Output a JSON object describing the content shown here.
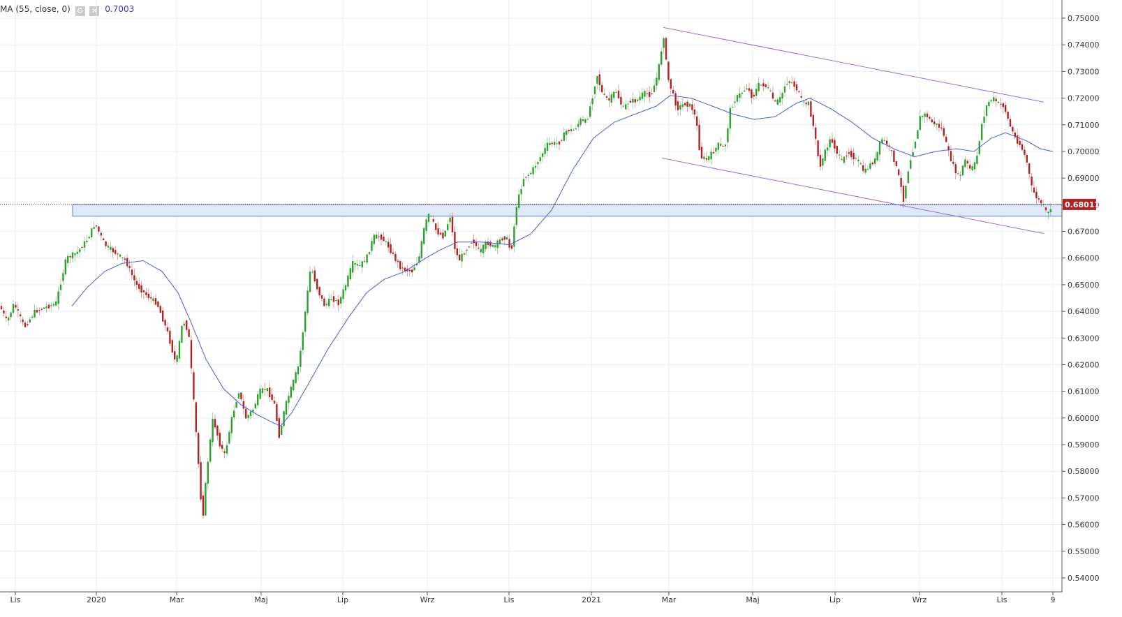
{
  "indicator": {
    "label": "MA (55, close, 0)",
    "value": "0.7003",
    "settings_icon": "gear-icon",
    "close_icon": "close-icon"
  },
  "price_tag": "0.68011",
  "colors": {
    "up": "#2ea02e",
    "down": "#b22222",
    "ma": "#4a5bd6",
    "channel": "#9b6ccf",
    "zone_fill": "#dfe9f7",
    "zone_border": "#5a7fc6",
    "price_line": "#8b1a1a",
    "grid": "#e9eef3"
  },
  "chart_data": {
    "type": "candlestick",
    "y_axis_labels": [
      "0.75000",
      "0.74000",
      "0.73000",
      "0.72000",
      "0.71000",
      "0.70000",
      "0.69000",
      "0.68000",
      "0.67000",
      "0.66000",
      "0.65000",
      "0.64000",
      "0.63000",
      "0.62000",
      "0.61000",
      "0.60000",
      "0.59000",
      "0.58000",
      "0.57000",
      "0.56000",
      "0.55000",
      "0.54000"
    ],
    "x_axis_labels": [
      "Lis",
      "2020",
      "Mar",
      "Maj",
      "Lip",
      "Wrz",
      "Lis",
      "2021",
      "Mar",
      "Maj",
      "Lip",
      "Wrz",
      "Lis",
      "9"
    ],
    "ylim": [
      0.537,
      0.752
    ],
    "last_price": 0.68011,
    "support_zone": [
      0.6757,
      0.68
    ],
    "price_path": [
      [
        0,
        0.642
      ],
      [
        10,
        0.636
      ],
      [
        20,
        0.643
      ],
      [
        35,
        0.634
      ],
      [
        50,
        0.64
      ],
      [
        70,
        0.642
      ],
      [
        80,
        0.643
      ],
      [
        95,
        0.66
      ],
      [
        110,
        0.662
      ],
      [
        125,
        0.667
      ],
      [
        136,
        0.673
      ],
      [
        150,
        0.665
      ],
      [
        165,
        0.662
      ],
      [
        180,
        0.659
      ],
      [
        195,
        0.65
      ],
      [
        210,
        0.646
      ],
      [
        225,
        0.643
      ],
      [
        240,
        0.632
      ],
      [
        252,
        0.62
      ],
      [
        262,
        0.637
      ],
      [
        270,
        0.632
      ],
      [
        278,
        0.604
      ],
      [
        285,
        0.58
      ],
      [
        290,
        0.561
      ],
      [
        296,
        0.58
      ],
      [
        305,
        0.6
      ],
      [
        315,
        0.59
      ],
      [
        322,
        0.586
      ],
      [
        332,
        0.6
      ],
      [
        342,
        0.61
      ],
      [
        352,
        0.6
      ],
      [
        362,
        0.603
      ],
      [
        372,
        0.61
      ],
      [
        382,
        0.611
      ],
      [
        393,
        0.605
      ],
      [
        400,
        0.593
      ],
      [
        408,
        0.604
      ],
      [
        418,
        0.612
      ],
      [
        428,
        0.62
      ],
      [
        435,
        0.635
      ],
      [
        445,
        0.657
      ],
      [
        455,
        0.648
      ],
      [
        465,
        0.642
      ],
      [
        475,
        0.645
      ],
      [
        485,
        0.643
      ],
      [
        495,
        0.65
      ],
      [
        505,
        0.658
      ],
      [
        515,
        0.657
      ],
      [
        525,
        0.66
      ],
      [
        535,
        0.668
      ],
      [
        545,
        0.668
      ],
      [
        555,
        0.665
      ],
      [
        565,
        0.66
      ],
      [
        575,
        0.656
      ],
      [
        590,
        0.655
      ],
      [
        600,
        0.66
      ],
      [
        608,
        0.672
      ],
      [
        615,
        0.677
      ],
      [
        625,
        0.67
      ],
      [
        635,
        0.668
      ],
      [
        645,
        0.676
      ],
      [
        650,
        0.665
      ],
      [
        657,
        0.659
      ],
      [
        667,
        0.663
      ],
      [
        677,
        0.667
      ],
      [
        687,
        0.662
      ],
      [
        697,
        0.666
      ],
      [
        707,
        0.664
      ],
      [
        717,
        0.667
      ],
      [
        725,
        0.668
      ],
      [
        732,
        0.662
      ],
      [
        740,
        0.68
      ],
      [
        750,
        0.69
      ],
      [
        760,
        0.692
      ],
      [
        772,
        0.697
      ],
      [
        785,
        0.703
      ],
      [
        800,
        0.703
      ],
      [
        812,
        0.708
      ],
      [
        822,
        0.708
      ],
      [
        832,
        0.712
      ],
      [
        840,
        0.711
      ],
      [
        848,
        0.72
      ],
      [
        855,
        0.729
      ],
      [
        862,
        0.722
      ],
      [
        872,
        0.719
      ],
      [
        882,
        0.723
      ],
      [
        892,
        0.716
      ],
      [
        902,
        0.719
      ],
      [
        912,
        0.719
      ],
      [
        922,
        0.722
      ],
      [
        932,
        0.721
      ],
      [
        940,
        0.727
      ],
      [
        946,
        0.735
      ],
      [
        950,
        0.745
      ],
      [
        956,
        0.728
      ],
      [
        963,
        0.722
      ],
      [
        970,
        0.716
      ],
      [
        980,
        0.718
      ],
      [
        990,
        0.717
      ],
      [
        997,
        0.712
      ],
      [
        1003,
        0.698
      ],
      [
        1012,
        0.697
      ],
      [
        1022,
        0.7
      ],
      [
        1030,
        0.703
      ],
      [
        1038,
        0.701
      ],
      [
        1046,
        0.716
      ],
      [
        1054,
        0.72
      ],
      [
        1062,
        0.722
      ],
      [
        1070,
        0.724
      ],
      [
        1078,
        0.72
      ],
      [
        1086,
        0.725
      ],
      [
        1094,
        0.725
      ],
      [
        1102,
        0.723
      ],
      [
        1110,
        0.718
      ],
      [
        1118,
        0.72
      ],
      [
        1126,
        0.726
      ],
      [
        1134,
        0.726
      ],
      [
        1142,
        0.723
      ],
      [
        1150,
        0.718
      ],
      [
        1158,
        0.718
      ],
      [
        1166,
        0.708
      ],
      [
        1174,
        0.694
      ],
      [
        1182,
        0.7
      ],
      [
        1190,
        0.705
      ],
      [
        1198,
        0.7
      ],
      [
        1206,
        0.696
      ],
      [
        1214,
        0.7
      ],
      [
        1222,
        0.698
      ],
      [
        1230,
        0.696
      ],
      [
        1238,
        0.692
      ],
      [
        1246,
        0.695
      ],
      [
        1254,
        0.697
      ],
      [
        1262,
        0.705
      ],
      [
        1270,
        0.703
      ],
      [
        1278,
        0.699
      ],
      [
        1286,
        0.692
      ],
      [
        1294,
        0.682
      ],
      [
        1302,
        0.695
      ],
      [
        1310,
        0.703
      ],
      [
        1318,
        0.713
      ],
      [
        1326,
        0.714
      ],
      [
        1334,
        0.711
      ],
      [
        1342,
        0.71
      ],
      [
        1350,
        0.708
      ],
      [
        1358,
        0.7
      ],
      [
        1366,
        0.694
      ],
      [
        1374,
        0.69
      ],
      [
        1382,
        0.697
      ],
      [
        1390,
        0.693
      ],
      [
        1398,
        0.696
      ],
      [
        1406,
        0.71
      ],
      [
        1414,
        0.718
      ],
      [
        1422,
        0.72
      ],
      [
        1430,
        0.718
      ],
      [
        1438,
        0.717
      ],
      [
        1446,
        0.71
      ],
      [
        1454,
        0.705
      ],
      [
        1462,
        0.702
      ],
      [
        1470,
        0.697
      ],
      [
        1478,
        0.686
      ],
      [
        1486,
        0.682
      ],
      [
        1494,
        0.68
      ],
      [
        1500,
        0.676
      ],
      [
        1507,
        0.68
      ]
    ],
    "ma_path": [
      [
        103,
        0.642
      ],
      [
        125,
        0.649
      ],
      [
        150,
        0.655
      ],
      [
        175,
        0.658
      ],
      [
        205,
        0.659
      ],
      [
        232,
        0.655
      ],
      [
        255,
        0.647
      ],
      [
        275,
        0.635
      ],
      [
        295,
        0.622
      ],
      [
        320,
        0.611
      ],
      [
        345,
        0.605
      ],
      [
        370,
        0.601
      ],
      [
        393,
        0.598
      ],
      [
        402,
        0.597
      ],
      [
        418,
        0.602
      ],
      [
        440,
        0.612
      ],
      [
        470,
        0.626
      ],
      [
        500,
        0.638
      ],
      [
        525,
        0.647
      ],
      [
        550,
        0.652
      ],
      [
        580,
        0.655
      ],
      [
        610,
        0.66
      ],
      [
        630,
        0.663
      ],
      [
        655,
        0.666
      ],
      [
        690,
        0.666
      ],
      [
        730,
        0.665
      ],
      [
        760,
        0.669
      ],
      [
        790,
        0.678
      ],
      [
        820,
        0.693
      ],
      [
        850,
        0.705
      ],
      [
        880,
        0.711
      ],
      [
        910,
        0.714
      ],
      [
        940,
        0.717
      ],
      [
        960,
        0.721
      ],
      [
        990,
        0.72
      ],
      [
        1020,
        0.717
      ],
      [
        1050,
        0.714
      ],
      [
        1080,
        0.712
      ],
      [
        1110,
        0.713
      ],
      [
        1140,
        0.718
      ],
      [
        1160,
        0.72
      ],
      [
        1190,
        0.716
      ],
      [
        1220,
        0.711
      ],
      [
        1250,
        0.705
      ],
      [
        1280,
        0.701
      ],
      [
        1310,
        0.698
      ],
      [
        1340,
        0.7
      ],
      [
        1370,
        0.701
      ],
      [
        1395,
        0.7
      ],
      [
        1420,
        0.705
      ],
      [
        1440,
        0.707
      ],
      [
        1470,
        0.704
      ],
      [
        1490,
        0.701
      ],
      [
        1508,
        0.7
      ]
    ],
    "channel_upper": [
      [
        950,
        0.7465
      ],
      [
        1495,
        0.7185
      ]
    ],
    "channel_lower": [
      [
        948,
        0.6975
      ],
      [
        1495,
        0.6692
      ]
    ]
  }
}
